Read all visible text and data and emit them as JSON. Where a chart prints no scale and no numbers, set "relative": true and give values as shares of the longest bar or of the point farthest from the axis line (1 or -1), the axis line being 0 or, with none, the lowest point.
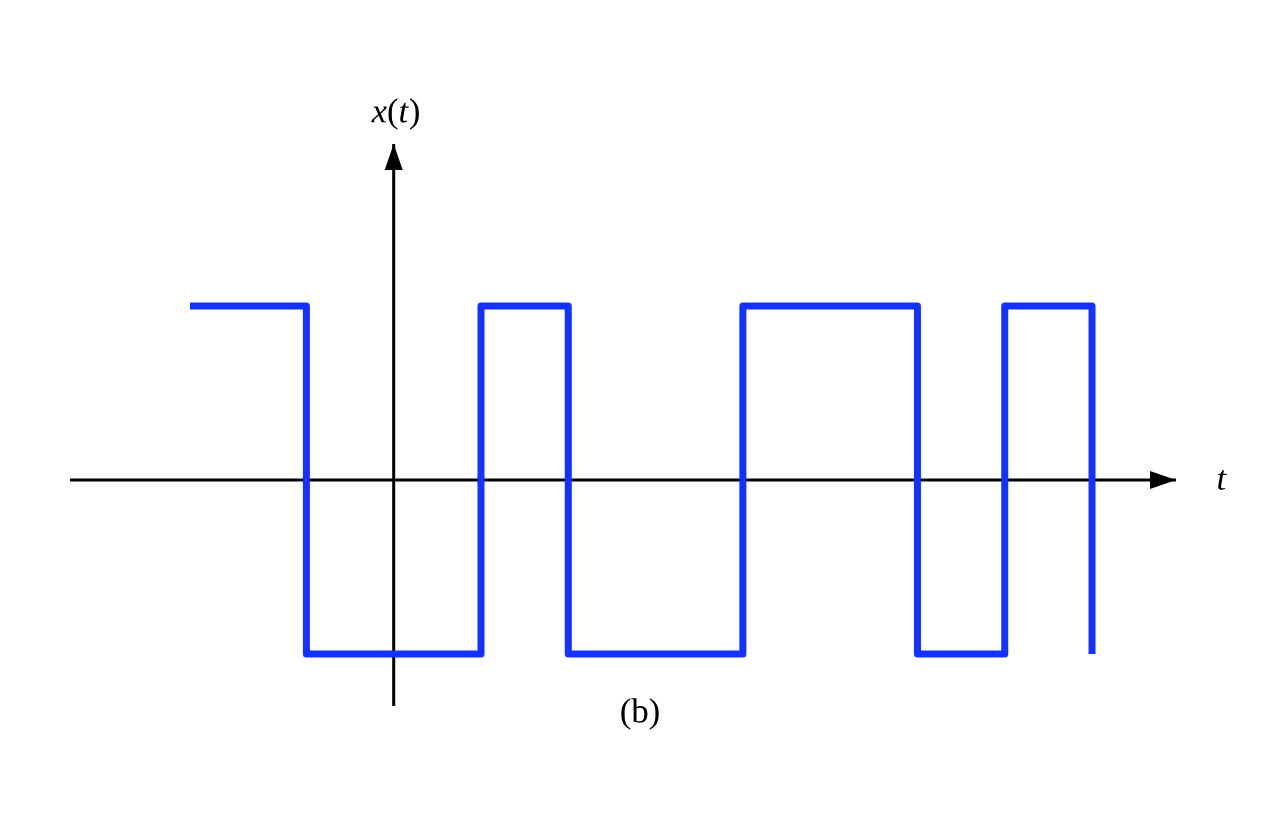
{
  "chart_data": {
    "type": "step",
    "relative": true,
    "xlabel": "t",
    "annotations": [
      "*x*(*t*)",
      "(b)"
    ],
    "categories": [
      null,
      null,
      null,
      null,
      null,
      null,
      null,
      null,
      null,
      null,
      null,
      null,
      null,
      null,
      null,
      null,
      null,
      null,
      null,
      null,
      null,
      null,
      null,
      null,
      null,
      null,
      null,
      null,
      null,
      null,
      null,
      null
    ],
    "values": [
      1,
      1,
      1,
      1,
      -1,
      -1,
      -1,
      -1,
      -1,
      -1,
      1,
      1,
      1,
      -1,
      -1,
      -1,
      -1,
      -1,
      -1,
      1,
      1,
      1,
      1,
      1,
      1,
      -1,
      -1,
      -1,
      1,
      1,
      1,
      -1
    ],
    "color": "#1432ff",
    "marker": "none",
    "line_style": "solid"
  }
}
